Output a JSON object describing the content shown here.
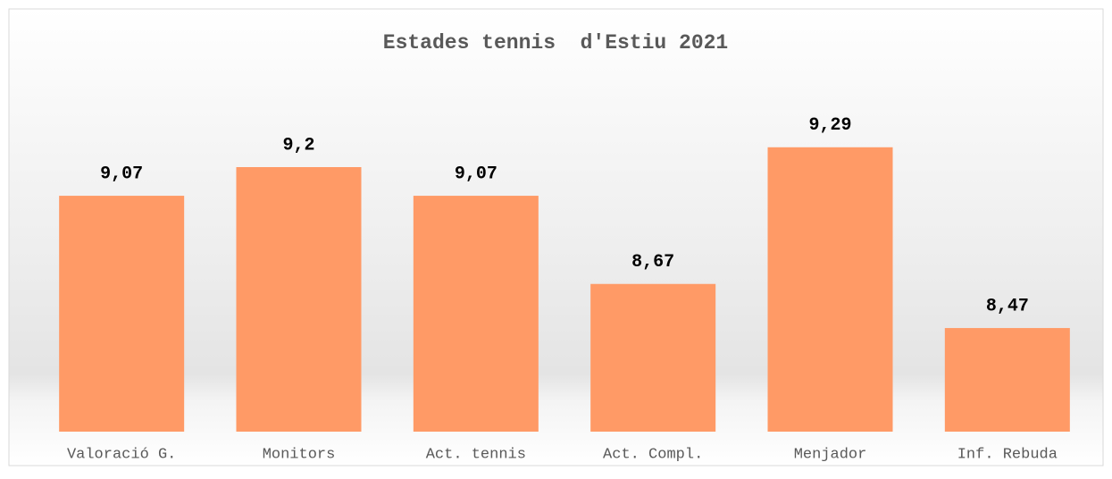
{
  "chart_data": {
    "type": "bar",
    "title": "Estades tennis  d'Estiu 2021",
    "categories": [
      "Valoració G.",
      "Monitors",
      "Act. tennis",
      "Act. Compl.",
      "Menjador",
      "Inf. Rebuda"
    ],
    "values": [
      9.07,
      9.2,
      9.07,
      8.67,
      9.29,
      8.47
    ],
    "value_labels": [
      "9,07",
      "9,2",
      "9,07",
      "8,67",
      "9,29",
      "8,47"
    ],
    "color": "#ff9a66",
    "ylim": [
      8,
      9.5
    ]
  }
}
